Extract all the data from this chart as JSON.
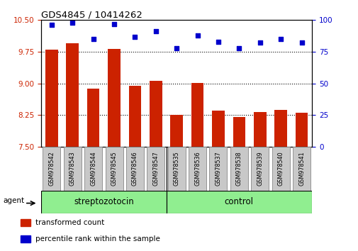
{
  "title": "GDS4845 / 10414262",
  "categories": [
    "GSM978542",
    "GSM978543",
    "GSM978544",
    "GSM978545",
    "GSM978546",
    "GSM978547",
    "GSM978535",
    "GSM978536",
    "GSM978537",
    "GSM978538",
    "GSM978539",
    "GSM978540",
    "GSM978541"
  ],
  "bar_values": [
    9.8,
    9.95,
    8.87,
    9.82,
    8.95,
    9.07,
    8.25,
    9.01,
    8.35,
    8.2,
    8.32,
    8.38,
    8.3
  ],
  "dot_values": [
    96,
    98,
    85,
    97,
    87,
    91,
    78,
    88,
    83,
    78,
    82,
    85,
    82
  ],
  "bar_color": "#cc2200",
  "dot_color": "#0000cc",
  "ylim_left": [
    7.5,
    10.5
  ],
  "ylim_right": [
    0,
    100
  ],
  "yticks_left": [
    7.5,
    8.25,
    9.0,
    9.75,
    10.5
  ],
  "yticks_right": [
    0,
    25,
    50,
    75,
    100
  ],
  "grid_values": [
    9.75,
    9.0,
    8.25
  ],
  "group1_label": "streptozotocin",
  "group2_label": "control",
  "group1_indices": [
    0,
    1,
    2,
    3,
    4,
    5
  ],
  "group2_indices": [
    6,
    7,
    8,
    9,
    10,
    11,
    12
  ],
  "group1_color": "#90ee90",
  "group2_color": "#90ee90",
  "agent_label": "agent",
  "legend_bar_label": "transformed count",
  "legend_dot_label": "percentile rank within the sample",
  "background_color": "#ffffff",
  "tick_area_color": "#c8c8c8",
  "bar_width": 0.6,
  "sep_color": "#32cd32"
}
